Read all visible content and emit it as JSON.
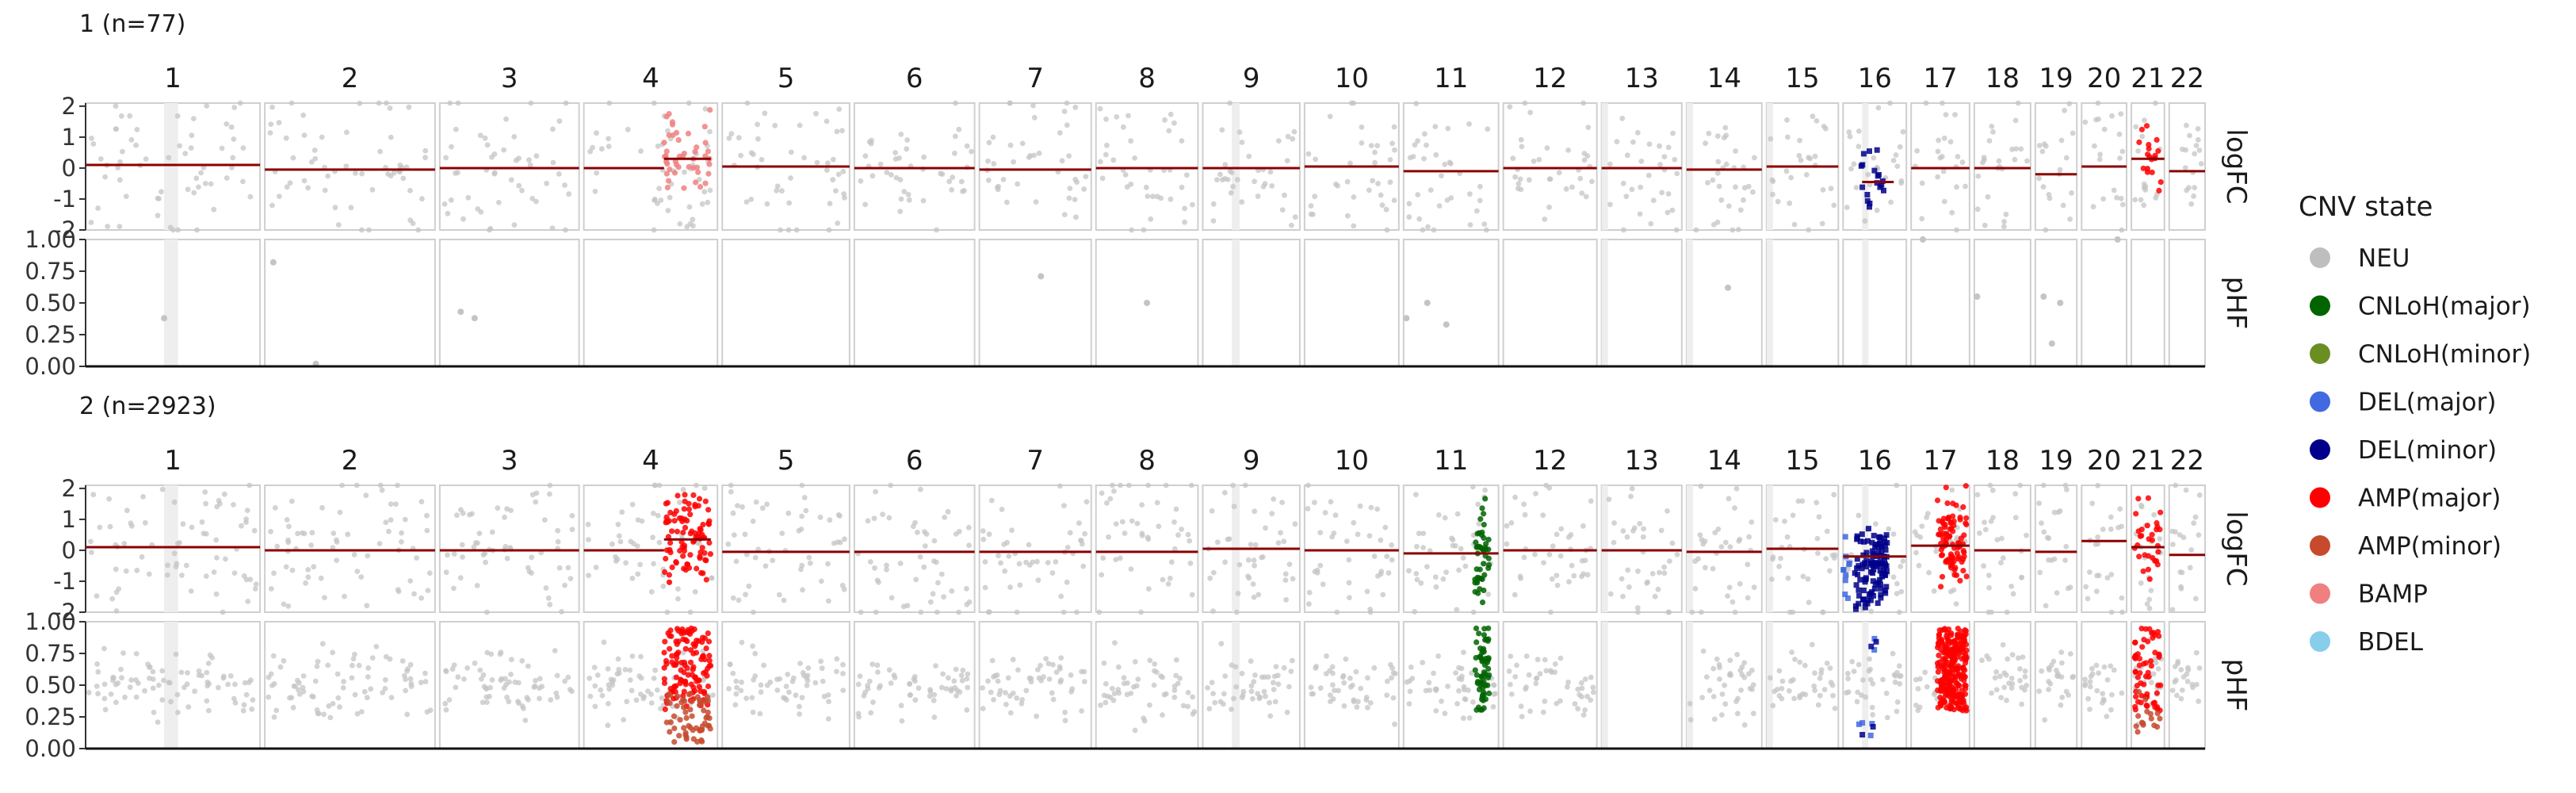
{
  "chart_data": {
    "type": "scatter",
    "chromosomes": [
      "1",
      "2",
      "3",
      "4",
      "5",
      "6",
      "7",
      "8",
      "9",
      "10",
      "11",
      "12",
      "13",
      "14",
      "15",
      "16",
      "17",
      "18",
      "19",
      "20",
      "21",
      "22"
    ],
    "chr_widths": [
      248,
      242,
      198,
      190,
      181,
      171,
      159,
      145,
      138,
      134,
      135,
      133,
      114,
      107,
      102,
      90,
      83,
      80,
      59,
      64,
      47,
      51
    ],
    "facets": [
      {
        "title": "1 (n=77)",
        "panels": [
          {
            "ylabel": "logFC",
            "ylim": [
              -2,
              2.1
            ],
            "yticks": [
              2,
              1,
              0,
              -1,
              -2
            ],
            "segments": [
              {
                "chr": "1",
                "from": 0,
                "to": 1,
                "value": 0.1
              },
              {
                "chr": "2",
                "from": 0,
                "to": 1,
                "value": -0.05
              },
              {
                "chr": "3",
                "from": 0,
                "to": 1,
                "value": 0.0
              },
              {
                "chr": "4",
                "from": 0,
                "to": 0.6,
                "value": 0.0
              },
              {
                "chr": "4",
                "from": 0.6,
                "to": 0.95,
                "value": 0.3
              },
              {
                "chr": "5",
                "from": 0,
                "to": 1,
                "value": 0.05
              },
              {
                "chr": "6",
                "from": 0,
                "to": 1,
                "value": 0.0
              },
              {
                "chr": "7",
                "from": 0,
                "to": 1,
                "value": -0.05
              },
              {
                "chr": "8",
                "from": 0,
                "to": 1,
                "value": 0.0
              },
              {
                "chr": "9",
                "from": 0,
                "to": 1,
                "value": 0.0
              },
              {
                "chr": "10",
                "from": 0,
                "to": 1,
                "value": 0.05
              },
              {
                "chr": "11",
                "from": 0,
                "to": 1,
                "value": -0.1
              },
              {
                "chr": "12",
                "from": 0,
                "to": 1,
                "value": 0.0
              },
              {
                "chr": "13",
                "from": 0,
                "to": 1,
                "value": 0.0
              },
              {
                "chr": "14",
                "from": 0,
                "to": 1,
                "value": -0.05
              },
              {
                "chr": "15",
                "from": 0,
                "to": 1,
                "value": 0.05
              },
              {
                "chr": "16",
                "from": 0.3,
                "to": 0.8,
                "value": -0.45
              },
              {
                "chr": "17",
                "from": 0,
                "to": 1,
                "value": 0.0
              },
              {
                "chr": "18",
                "from": 0,
                "to": 1,
                "value": 0.0
              },
              {
                "chr": "19",
                "from": 0,
                "to": 1,
                "value": -0.2
              },
              {
                "chr": "20",
                "from": 0,
                "to": 1,
                "value": 0.05
              },
              {
                "chr": "21",
                "from": 0,
                "to": 1,
                "value": 0.3
              },
              {
                "chr": "22",
                "from": 0,
                "to": 1,
                "value": -0.1
              }
            ],
            "highlights": [
              {
                "chr": "4",
                "from": 0.6,
                "to": 0.95,
                "state": "BAMP",
                "count": 45
              },
              {
                "chr": "16",
                "from": 0.25,
                "to": 0.7,
                "state": "DEL(minor)",
                "count": 18
              },
              {
                "chr": "21",
                "from": 0.2,
                "to": 0.9,
                "state": "AMP(major)",
                "count": 18
              }
            ],
            "density": 22
          },
          {
            "ylabel": "pHF",
            "ylim": [
              0,
              1.0
            ],
            "yticks": [
              1.0,
              0.75,
              0.5,
              0.25,
              0.0
            ],
            "highlights": [],
            "sparse_points": [
              {
                "chr": "1",
                "pos": 0.45,
                "value": 0.38
              },
              {
                "chr": "2",
                "pos": 0.05,
                "value": 0.82
              },
              {
                "chr": "2",
                "pos": 0.3,
                "value": 0.02
              },
              {
                "chr": "3",
                "pos": 0.15,
                "value": 0.43
              },
              {
                "chr": "3",
                "pos": 0.25,
                "value": 0.38
              },
              {
                "chr": "7",
                "pos": 0.55,
                "value": 0.71
              },
              {
                "chr": "8",
                "pos": 0.5,
                "value": 0.5
              },
              {
                "chr": "11",
                "pos": 0.03,
                "value": 0.38
              },
              {
                "chr": "11",
                "pos": 0.25,
                "value": 0.5
              },
              {
                "chr": "11",
                "pos": 0.45,
                "value": 0.33
              },
              {
                "chr": "14",
                "pos": 0.55,
                "value": 0.62
              },
              {
                "chr": "17",
                "pos": 0.2,
                "value": 1.0
              },
              {
                "chr": "18",
                "pos": 0.05,
                "value": 0.55
              },
              {
                "chr": "19",
                "pos": 0.2,
                "value": 0.55
              },
              {
                "chr": "19",
                "pos": 0.4,
                "value": 0.18
              },
              {
                "chr": "19",
                "pos": 0.6,
                "value": 0.5
              },
              {
                "chr": "20",
                "pos": 0.8,
                "value": 1.0
              }
            ]
          }
        ]
      },
      {
        "title": "2 (n=2923)",
        "panels": [
          {
            "ylabel": "logFC",
            "ylim": [
              -2,
              2.1
            ],
            "yticks": [
              2,
              1,
              0,
              -1,
              -2
            ],
            "segments": [
              {
                "chr": "1",
                "from": 0,
                "to": 1,
                "value": 0.1
              },
              {
                "chr": "2",
                "from": 0,
                "to": 1,
                "value": 0.0
              },
              {
                "chr": "3",
                "from": 0,
                "to": 1,
                "value": 0.0
              },
              {
                "chr": "4",
                "from": 0,
                "to": 0.6,
                "value": 0.0
              },
              {
                "chr": "4",
                "from": 0.6,
                "to": 0.95,
                "value": 0.35
              },
              {
                "chr": "5",
                "from": 0,
                "to": 1,
                "value": -0.05
              },
              {
                "chr": "6",
                "from": 0,
                "to": 1,
                "value": -0.05
              },
              {
                "chr": "7",
                "from": 0,
                "to": 1,
                "value": -0.05
              },
              {
                "chr": "8",
                "from": 0,
                "to": 1,
                "value": -0.05
              },
              {
                "chr": "9",
                "from": 0,
                "to": 1,
                "value": 0.05
              },
              {
                "chr": "10",
                "from": 0,
                "to": 1,
                "value": 0.0
              },
              {
                "chr": "11",
                "from": 0,
                "to": 1,
                "value": -0.1
              },
              {
                "chr": "12",
                "from": 0,
                "to": 1,
                "value": 0.0
              },
              {
                "chr": "13",
                "from": 0,
                "to": 1,
                "value": 0.0
              },
              {
                "chr": "14",
                "from": 0,
                "to": 1,
                "value": -0.05
              },
              {
                "chr": "15",
                "from": 0,
                "to": 1,
                "value": 0.05
              },
              {
                "chr": "16",
                "from": 0,
                "to": 1,
                "value": -0.2
              },
              {
                "chr": "17",
                "from": 0,
                "to": 1,
                "value": 0.15
              },
              {
                "chr": "18",
                "from": 0,
                "to": 1,
                "value": 0.0
              },
              {
                "chr": "19",
                "from": 0,
                "to": 1,
                "value": -0.05
              },
              {
                "chr": "20",
                "from": 0,
                "to": 1,
                "value": 0.3
              },
              {
                "chr": "21",
                "from": 0,
                "to": 1,
                "value": 0.1
              },
              {
                "chr": "22",
                "from": 0,
                "to": 1,
                "value": -0.15
              }
            ],
            "highlights": [
              {
                "chr": "4",
                "from": 0.6,
                "to": 0.95,
                "state": "AMP(major)",
                "count": 90
              },
              {
                "chr": "11",
                "from": 0.75,
                "to": 0.9,
                "state": "CNLoH(major)",
                "count": 45
              },
              {
                "chr": "16",
                "from": 0.0,
                "to": 0.12,
                "state": "DEL(major)",
                "count": 10
              },
              {
                "chr": "16",
                "from": 0.18,
                "to": 0.7,
                "state": "DEL(minor)",
                "count": 110
              },
              {
                "chr": "17",
                "from": 0.45,
                "to": 0.95,
                "state": "AMP(major)",
                "count": 90
              },
              {
                "chr": "21",
                "from": 0.1,
                "to": 0.9,
                "state": "AMP(major)",
                "count": 30
              }
            ],
            "density": 26
          },
          {
            "ylabel": "pHF",
            "ylim": [
              0,
              1.0
            ],
            "yticks": [
              1.0,
              0.75,
              0.5,
              0.25,
              0.0
            ],
            "highlights": [
              {
                "chr": "4",
                "from": 0.6,
                "to": 0.95,
                "state": "AMP(major)",
                "count": 120
              },
              {
                "chr": "4",
                "from": 0.6,
                "to": 0.95,
                "state": "AMP(minor)",
                "count": 60
              },
              {
                "chr": "11",
                "from": 0.75,
                "to": 0.9,
                "state": "CNLoH(major)",
                "count": 60
              },
              {
                "chr": "16",
                "from": 0.25,
                "to": 0.6,
                "state": "DEL(major)",
                "count": 6
              },
              {
                "chr": "16",
                "from": 0.25,
                "to": 0.6,
                "state": "DEL(minor)",
                "count": 4
              },
              {
                "chr": "17",
                "from": 0.45,
                "to": 0.95,
                "state": "AMP(major)",
                "count": 260
              },
              {
                "chr": "21",
                "from": 0.1,
                "to": 0.9,
                "state": "AMP(major)",
                "count": 60
              },
              {
                "chr": "21",
                "from": 0.1,
                "to": 0.9,
                "state": "AMP(minor)",
                "count": 15
              }
            ],
            "empty_chr": [
              "13"
            ],
            "density": 30
          }
        ]
      }
    ],
    "legend": {
      "title": "CNV state",
      "position": "right",
      "items": [
        {
          "label": "NEU",
          "color": "#bebebe"
        },
        {
          "label": "CNLoH(major)",
          "color": "#006400"
        },
        {
          "label": "CNLoH(minor)",
          "color": "#6b8e23"
        },
        {
          "label": "DEL(major)",
          "color": "#4169e1"
        },
        {
          "label": "DEL(minor)",
          "color": "#00008b"
        },
        {
          "label": "AMP(major)",
          "color": "#ff0000"
        },
        {
          "label": "AMP(minor)",
          "color": "#c74a2e"
        },
        {
          "label": "BAMP",
          "color": "#f08080"
        },
        {
          "label": "BDEL",
          "color": "#87ceeb"
        }
      ]
    },
    "segment_color": "#8b0000",
    "grid": false
  }
}
